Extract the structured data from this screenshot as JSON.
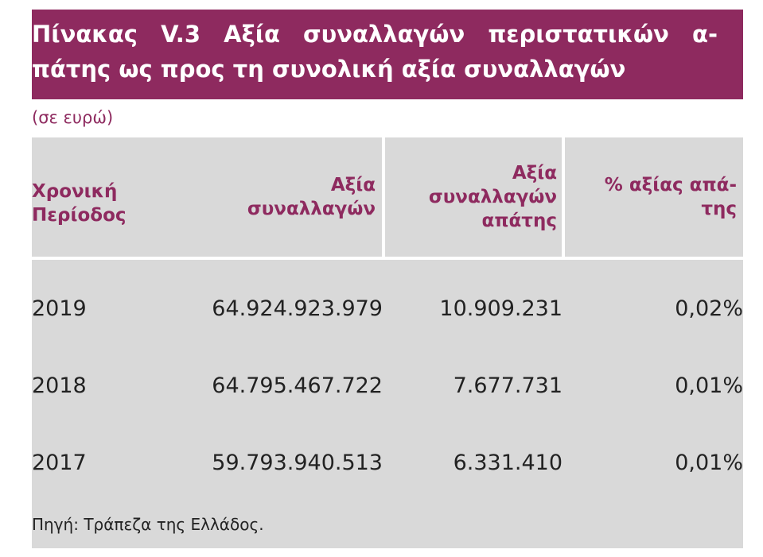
{
  "title": [
    "Πίνακας V.3 Αξία συναλλαγών περιστατικών α-",
    "πάτης ως προς τη συνολική αξία συναλλαγών"
  ],
  "unit_note": "(σε ευρώ)",
  "table": {
    "headers": [
      [
        "Χρονική",
        "Περίοδος"
      ],
      [
        "Αξία",
        "συναλλαγών"
      ],
      [
        "Αξία",
        "συναλλαγών",
        "απάτης"
      ],
      [
        "% αξίας απά-",
        "της"
      ]
    ],
    "rows": [
      [
        "2019",
        "64.924.923.979",
        "10.909.231",
        "0,02%"
      ],
      [
        "2018",
        "64.795.467.722",
        "7.677.731",
        "0,01%"
      ],
      [
        "2017",
        "59.793.940.513",
        "6.331.410",
        "0,01%"
      ]
    ]
  },
  "source": "Πηγή: Τράπεζα της Ελλάδος."
}
